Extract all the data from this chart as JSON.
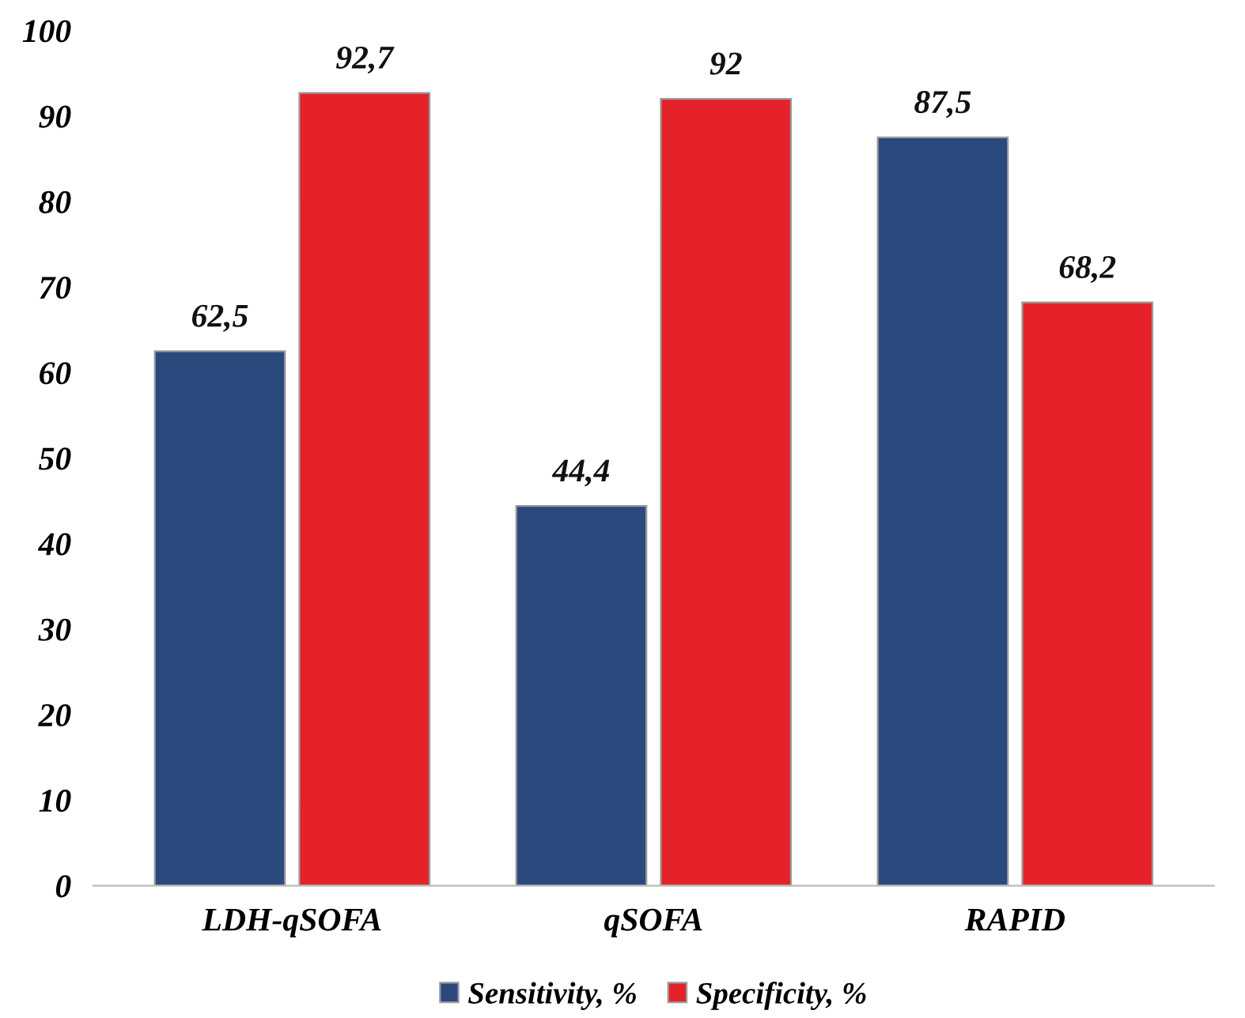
{
  "chart_data": {
    "type": "bar",
    "categories": [
      "LDH-qSOFA",
      "qSOFA",
      "RAPID"
    ],
    "series": [
      {
        "name": "Sensitivity, %",
        "color": "#2a4a7e",
        "values": [
          62.5,
          44.4,
          87.5
        ],
        "value_labels": [
          "62,5",
          "44,4",
          "87,5"
        ]
      },
      {
        "name": "Specificity, %",
        "color": "#e52229",
        "values": [
          92.7,
          92,
          68.2
        ],
        "value_labels": [
          "92,7",
          "92",
          "68,2"
        ]
      }
    ],
    "ylim": [
      0,
      100
    ],
    "yticks": [
      0,
      10,
      20,
      30,
      40,
      50,
      60,
      70,
      80,
      90,
      100
    ],
    "grid": false,
    "legend": "bottom"
  }
}
